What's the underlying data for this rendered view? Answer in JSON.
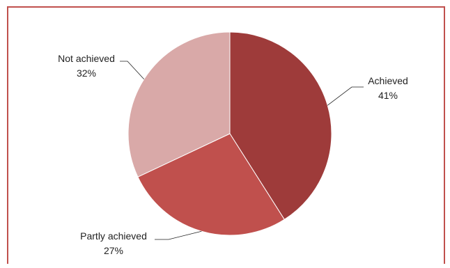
{
  "chart_data": {
    "type": "pie",
    "title": "",
    "slices": [
      {
        "label": "Achieved",
        "percent_label": "41%",
        "value": 41,
        "color": "#9e3b3a"
      },
      {
        "label": "Partly achieved",
        "percent_label": "27%",
        "value": 27,
        "color": "#c0504d"
      },
      {
        "label": "Not achieved",
        "percent_label": "32%",
        "value": 32,
        "color": "#d9a9a8"
      }
    ],
    "legend": "none",
    "frame_color": "#c0504d"
  }
}
